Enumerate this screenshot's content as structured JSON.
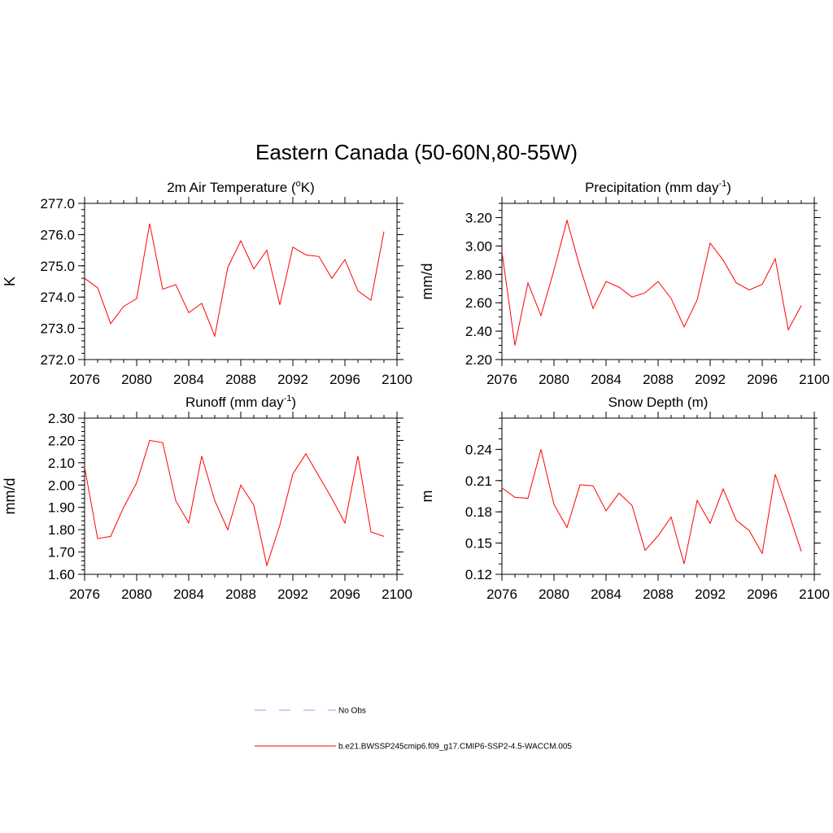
{
  "title": "Eastern Canada (50-60N,80-55W)",
  "colors": {
    "series": "#ff0000",
    "obs": "#9999ee",
    "axis": "#000000"
  },
  "legend": {
    "placement": "bottom-center",
    "items": [
      {
        "label": "No Obs",
        "style": "dashed",
        "color": "#9999ee"
      },
      {
        "label": "b.e21.BWSSP245cmip6.f09_g17.CMIP6-SSP2-4.5-WACCM.005",
        "style": "solid",
        "color": "#ff0000"
      }
    ]
  },
  "chart_data": [
    {
      "type": "line",
      "title": "2m Air Temperature (",
      "title_sup": "o",
      "title_post": "K)",
      "ylabel": "K",
      "xlim": [
        2076,
        2100
      ],
      "ylim": [
        272.0,
        277.0
      ],
      "x_ticks": [
        "2076",
        "2080",
        "2084",
        "2088",
        "2092",
        "2096",
        "2100"
      ],
      "y_ticks": [
        "272.0",
        "273.0",
        "274.0",
        "275.0",
        "276.0",
        "277.0"
      ],
      "y_tick_values": [
        272.0,
        273.0,
        274.0,
        275.0,
        276.0,
        277.0
      ],
      "y_minor_step": 0.2,
      "x_minor_step": 1,
      "x": [
        2076,
        2077,
        2078,
        2079,
        2080,
        2081,
        2082,
        2083,
        2084,
        2085,
        2086,
        2087,
        2088,
        2089,
        2090,
        2091,
        2092,
        2093,
        2094,
        2095,
        2096,
        2097,
        2098,
        2099
      ],
      "values": [
        274.6,
        274.3,
        273.15,
        273.7,
        273.95,
        276.35,
        274.25,
        274.4,
        273.5,
        273.8,
        272.75,
        274.95,
        275.8,
        274.9,
        275.5,
        273.75,
        275.6,
        275.35,
        275.3,
        274.6,
        275.2,
        274.2,
        273.9,
        276.1
      ]
    },
    {
      "type": "line",
      "title": "Precipitation (mm day",
      "title_sup": "-1",
      "title_post": ")",
      "ylabel": "mm/d",
      "xlim": [
        2076,
        2100
      ],
      "ylim": [
        2.2,
        3.3
      ],
      "x_ticks": [
        "2076",
        "2080",
        "2084",
        "2088",
        "2092",
        "2096",
        "2100"
      ],
      "y_ticks": [
        "2.20",
        "2.40",
        "2.60",
        "2.80",
        "3.00",
        "3.20"
      ],
      "y_tick_values": [
        2.2,
        2.4,
        2.6,
        2.8,
        3.0,
        3.2
      ],
      "y_minor_step": 0.05,
      "x_minor_step": 1,
      "x": [
        2076,
        2077,
        2078,
        2079,
        2080,
        2081,
        2082,
        2083,
        2084,
        2085,
        2086,
        2087,
        2088,
        2089,
        2090,
        2091,
        2092,
        2093,
        2094,
        2095,
        2096,
        2097,
        2098,
        2099
      ],
      "values": [
        2.96,
        2.3,
        2.74,
        2.51,
        2.83,
        3.18,
        2.85,
        2.56,
        2.75,
        2.71,
        2.64,
        2.67,
        2.75,
        2.63,
        2.43,
        2.62,
        3.02,
        2.9,
        2.74,
        2.69,
        2.73,
        2.91,
        2.41,
        2.58
      ]
    },
    {
      "type": "line",
      "title": "Runoff (mm day",
      "title_sup": "-1",
      "title_post": ")",
      "ylabel": "mm/d",
      "xlim": [
        2076,
        2100
      ],
      "ylim": [
        1.6,
        2.3
      ],
      "x_ticks": [
        "2076",
        "2080",
        "2084",
        "2088",
        "2092",
        "2096",
        "2100"
      ],
      "y_ticks": [
        "1.60",
        "1.70",
        "1.80",
        "1.90",
        "2.00",
        "2.10",
        "2.20",
        "2.30"
      ],
      "y_tick_values": [
        1.6,
        1.7,
        1.8,
        1.9,
        2.0,
        2.1,
        2.2,
        2.3
      ],
      "y_minor_step": 0.02,
      "x_minor_step": 1,
      "x": [
        2076,
        2077,
        2078,
        2079,
        2080,
        2081,
        2082,
        2083,
        2084,
        2085,
        2086,
        2087,
        2088,
        2089,
        2090,
        2091,
        2092,
        2093,
        2094,
        2095,
        2096,
        2097,
        2098,
        2099
      ],
      "values": [
        2.08,
        1.76,
        1.77,
        1.9,
        2.01,
        2.2,
        2.19,
        1.93,
        1.83,
        2.13,
        1.93,
        1.8,
        2.0,
        1.91,
        1.64,
        1.82,
        2.05,
        2.14,
        2.04,
        1.94,
        1.83,
        2.13,
        1.79,
        1.77
      ]
    },
    {
      "type": "line",
      "title": "Snow Depth (m)",
      "title_sup": "",
      "title_post": "",
      "ylabel": "m",
      "xlim": [
        2076,
        2100
      ],
      "ylim": [
        0.12,
        0.27
      ],
      "x_ticks": [
        "2076",
        "2080",
        "2084",
        "2088",
        "2092",
        "2096",
        "2100"
      ],
      "y_ticks": [
        "0.12",
        "0.15",
        "0.18",
        "0.21",
        "0.24"
      ],
      "y_tick_values": [
        0.12,
        0.15,
        0.18,
        0.21,
        0.24
      ],
      "y_minor_step": 0.01,
      "x_minor_step": 1,
      "x": [
        2076,
        2077,
        2078,
        2079,
        2080,
        2081,
        2082,
        2083,
        2084,
        2085,
        2086,
        2087,
        2088,
        2089,
        2090,
        2091,
        2092,
        2093,
        2094,
        2095,
        2096,
        2097,
        2098,
        2099
      ],
      "values": [
        0.203,
        0.194,
        0.193,
        0.24,
        0.187,
        0.165,
        0.206,
        0.205,
        0.181,
        0.198,
        0.186,
        0.143,
        0.157,
        0.175,
        0.13,
        0.191,
        0.169,
        0.202,
        0.172,
        0.162,
        0.14,
        0.216,
        0.18,
        0.142
      ]
    }
  ]
}
